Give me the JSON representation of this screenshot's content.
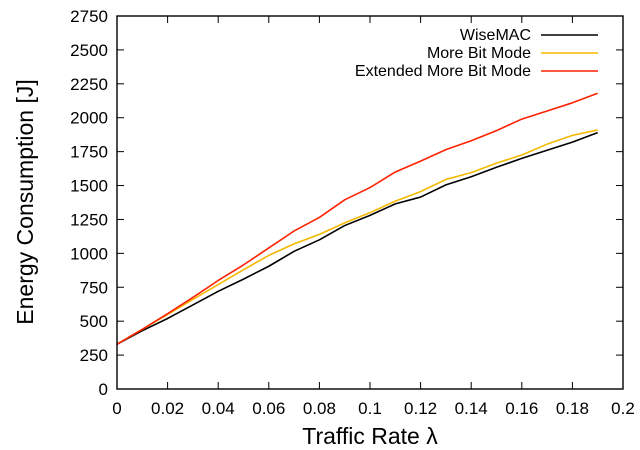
{
  "chart_data": {
    "type": "line",
    "title": "",
    "xlabel": "Traffic Rate λ",
    "ylabel": "Energy Consumption [J]",
    "xlim": [
      0,
      0.2
    ],
    "ylim": [
      0,
      2750
    ],
    "x_ticks": [
      0,
      0.02,
      0.04,
      0.06,
      0.08,
      0.1,
      0.12,
      0.14,
      0.16,
      0.18,
      0.2
    ],
    "x_tick_labels": [
      "0",
      "0.02",
      "0.04",
      "0.06",
      "0.08",
      "0.1",
      "0.12",
      "0.14",
      "0.16",
      "0.18",
      "0.2"
    ],
    "y_ticks": [
      0,
      250,
      500,
      750,
      1000,
      1250,
      1500,
      1750,
      2000,
      2250,
      2500,
      2750
    ],
    "y_tick_labels": [
      "0",
      "250",
      "500",
      "750",
      "1000",
      "1250",
      "1500",
      "1750",
      "2000",
      "2250",
      "2500",
      "2750"
    ],
    "grid": false,
    "legend_position": "top-right",
    "x": [
      0,
      0.01,
      0.02,
      0.03,
      0.04,
      0.05,
      0.06,
      0.07,
      0.08,
      0.09,
      0.1,
      0.11,
      0.12,
      0.13,
      0.14,
      0.15,
      0.16,
      0.17,
      0.18,
      0.19
    ],
    "series": [
      {
        "name": "WiseMAC",
        "color": "#000000",
        "values": [
          330,
          430,
          520,
          620,
          720,
          810,
          905,
          1015,
          1100,
          1205,
          1280,
          1365,
          1415,
          1505,
          1565,
          1635,
          1700,
          1760,
          1820,
          1890
        ]
      },
      {
        "name": "More Bit Mode",
        "color": "#f5b800",
        "values": [
          330,
          440,
          550,
          660,
          770,
          880,
          985,
          1070,
          1140,
          1225,
          1300,
          1385,
          1455,
          1545,
          1595,
          1665,
          1725,
          1805,
          1870,
          1910
        ]
      },
      {
        "name": "Extended More Bit Mode",
        "color": "#ff2200",
        "values": [
          330,
          440,
          555,
          675,
          800,
          915,
          1040,
          1165,
          1265,
          1395,
          1485,
          1600,
          1680,
          1765,
          1830,
          1905,
          1990,
          2050,
          2110,
          2180
        ]
      }
    ]
  }
}
